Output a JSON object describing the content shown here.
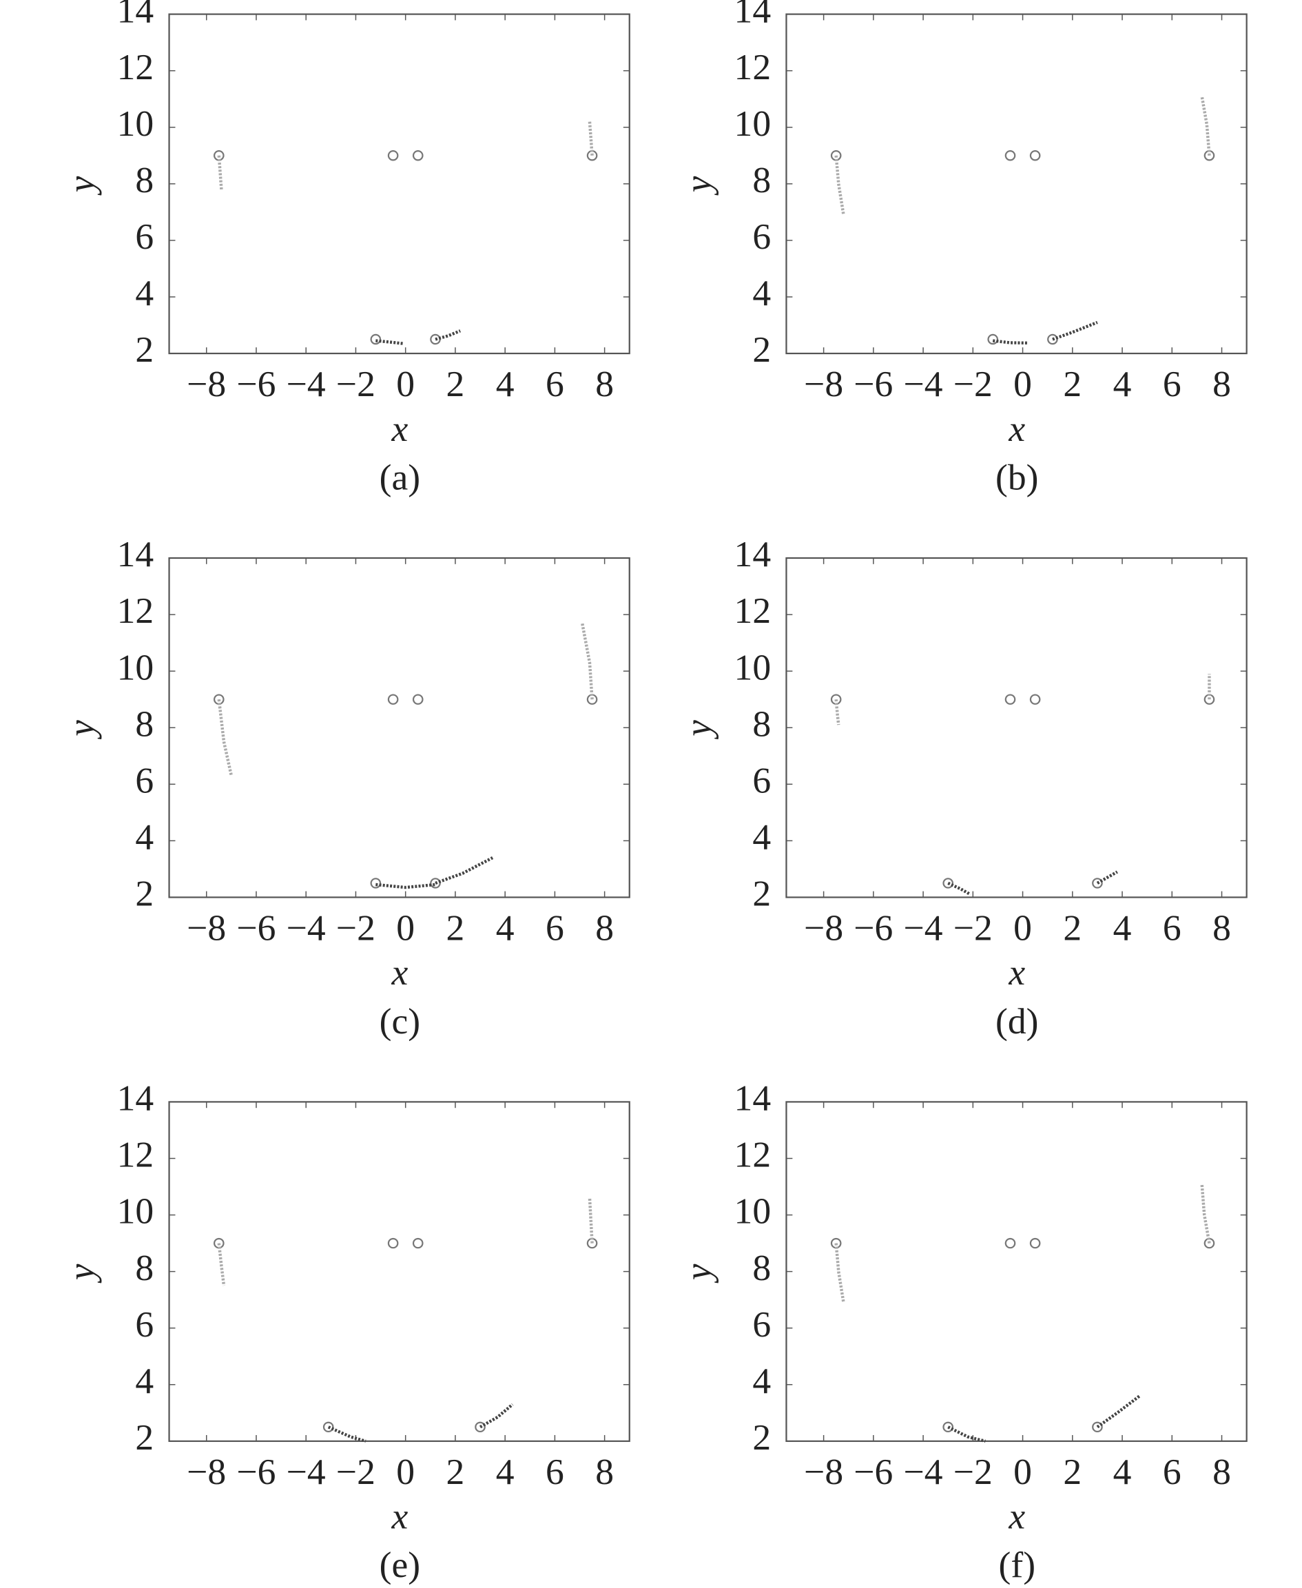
{
  "chart_data": [
    {
      "type": "scatter",
      "title": "(a)",
      "x_label": "x",
      "y_label": "y",
      "xlim": [
        -9.5,
        9
      ],
      "ylim": [
        2,
        14
      ],
      "xticks": [
        {
          "value": -8,
          "label": "−8"
        },
        {
          "value": -6,
          "label": "−6"
        },
        {
          "value": -4,
          "label": "−4"
        },
        {
          "value": -2,
          "label": "−2"
        },
        0,
        2,
        4,
        6,
        8
      ],
      "yticks": [
        2,
        4,
        6,
        8,
        10,
        12,
        14
      ],
      "series": [
        {
          "marker": "circle",
          "color": "#777777",
          "x": [
            -7.5,
            -0.5,
            0.5,
            7.5,
            -1.2,
            1.2
          ],
          "y": [
            9,
            9,
            9,
            9,
            2.5,
            2.5
          ]
        },
        {
          "marker": "dots",
          "color": "#aaaaaa",
          "x": [
            -7.5,
            -7.45,
            -7.4
          ],
          "y": [
            9,
            8.4,
            7.8
          ]
        },
        {
          "marker": "dots",
          "color": "#aaaaaa",
          "x": [
            7.5,
            7.45,
            7.4
          ],
          "y": [
            9,
            9.6,
            10.2
          ]
        },
        {
          "marker": "dots",
          "color": "#444444",
          "x": [
            -1.2,
            -0.6,
            -0.1
          ],
          "y": [
            2.45,
            2.4,
            2.35
          ]
        },
        {
          "marker": "dots",
          "color": "#444444",
          "x": [
            1.2,
            1.7,
            2.2
          ],
          "y": [
            2.5,
            2.62,
            2.8
          ]
        }
      ]
    },
    {
      "type": "scatter",
      "title": "(b)",
      "x_label": "x",
      "y_label": "y",
      "xlim": [
        -9.5,
        9
      ],
      "ylim": [
        2,
        14
      ],
      "xticks": [
        {
          "value": -8,
          "label": "−8"
        },
        {
          "value": -6,
          "label": "−6"
        },
        {
          "value": -4,
          "label": "−4"
        },
        {
          "value": -2,
          "label": "−2"
        },
        0,
        2,
        4,
        6,
        8
      ],
      "yticks": [
        2,
        4,
        6,
        8,
        10,
        12,
        14
      ],
      "series": [
        {
          "marker": "circle",
          "color": "#777777",
          "x": [
            -7.5,
            -0.5,
            0.5,
            7.5,
            -1.2,
            1.2
          ],
          "y": [
            9,
            9,
            9,
            9,
            2.5,
            2.5
          ]
        },
        {
          "marker": "dots",
          "color": "#aaaaaa",
          "x": [
            -7.5,
            -7.4,
            -7.2
          ],
          "y": [
            9,
            8,
            6.9
          ]
        },
        {
          "marker": "dots",
          "color": "#aaaaaa",
          "x": [
            7.5,
            7.4,
            7.2
          ],
          "y": [
            9,
            10.1,
            11.1
          ]
        },
        {
          "marker": "dots",
          "color": "#444444",
          "x": [
            -1.2,
            -0.5,
            0.2
          ],
          "y": [
            2.45,
            2.38,
            2.37
          ]
        },
        {
          "marker": "dots",
          "color": "#444444",
          "x": [
            1.2,
            2,
            3
          ],
          "y": [
            2.5,
            2.75,
            3.1
          ]
        }
      ]
    },
    {
      "type": "scatter",
      "title": "(c)",
      "x_label": "x",
      "y_label": "y",
      "xlim": [
        -9.5,
        9
      ],
      "ylim": [
        2,
        14
      ],
      "xticks": [
        {
          "value": -8,
          "label": "−8"
        },
        {
          "value": -6,
          "label": "−6"
        },
        {
          "value": -4,
          "label": "−4"
        },
        {
          "value": -2,
          "label": "−2"
        },
        0,
        2,
        4,
        6,
        8
      ],
      "yticks": [
        2,
        4,
        6,
        8,
        10,
        12,
        14
      ],
      "series": [
        {
          "marker": "circle",
          "color": "#777777",
          "x": [
            -7.5,
            -0.5,
            0.5,
            7.5,
            -1.2,
            1.2
          ],
          "y": [
            9,
            9,
            9,
            9,
            2.5,
            2.5
          ]
        },
        {
          "marker": "dots",
          "color": "#aaaaaa",
          "x": [
            -7.5,
            -7.3,
            -7
          ],
          "y": [
            9,
            7.5,
            6.3
          ]
        },
        {
          "marker": "dots",
          "color": "#aaaaaa",
          "x": [
            7.5,
            7.4,
            7.1
          ],
          "y": [
            9,
            10.3,
            11.7
          ]
        },
        {
          "marker": "dots",
          "color": "#444444",
          "x": [
            -1.2,
            0,
            1.2
          ],
          "y": [
            2.45,
            2.35,
            2.45
          ]
        },
        {
          "marker": "dots",
          "color": "#444444",
          "x": [
            1.2,
            2.3,
            3.5
          ],
          "y": [
            2.5,
            2.85,
            3.4
          ]
        }
      ]
    },
    {
      "type": "scatter",
      "title": "(d)",
      "x_label": "x",
      "y_label": "y",
      "xlim": [
        -9.5,
        9
      ],
      "ylim": [
        2,
        14
      ],
      "xticks": [
        {
          "value": -8,
          "label": "−8"
        },
        {
          "value": -6,
          "label": "−6"
        },
        {
          "value": -4,
          "label": "−4"
        },
        {
          "value": -2,
          "label": "−2"
        },
        0,
        2,
        4,
        6,
        8
      ],
      "yticks": [
        2,
        4,
        6,
        8,
        10,
        12,
        14
      ],
      "series": [
        {
          "marker": "circle",
          "color": "#777777",
          "x": [
            -7.5,
            -0.5,
            0.5,
            7.5,
            -3,
            3
          ],
          "y": [
            9,
            9,
            9,
            9,
            2.5,
            2.5
          ]
        },
        {
          "marker": "dots",
          "color": "#aaaaaa",
          "x": [
            -7.5,
            -7.45,
            -7.4
          ],
          "y": [
            9,
            8.5,
            8.1
          ]
        },
        {
          "marker": "dots",
          "color": "#aaaaaa",
          "x": [
            7.5,
            7.5,
            7.5
          ],
          "y": [
            9,
            9.5,
            9.9
          ]
        },
        {
          "marker": "dots",
          "color": "#444444",
          "x": [
            -3,
            -2.5,
            -2.1
          ],
          "y": [
            2.5,
            2.3,
            2.1
          ]
        },
        {
          "marker": "dots",
          "color": "#444444",
          "x": [
            3,
            3.4,
            3.8
          ],
          "y": [
            2.5,
            2.7,
            2.9
          ]
        }
      ]
    },
    {
      "type": "scatter",
      "title": "(e)",
      "x_label": "x",
      "y_label": "y",
      "xlim": [
        -9.5,
        9
      ],
      "ylim": [
        2,
        14
      ],
      "xticks": [
        {
          "value": -8,
          "label": "−8"
        },
        {
          "value": -6,
          "label": "−6"
        },
        {
          "value": -4,
          "label": "−4"
        },
        {
          "value": -2,
          "label": "−2"
        },
        0,
        2,
        4,
        6,
        8
      ],
      "yticks": [
        2,
        4,
        6,
        8,
        10,
        12,
        14
      ],
      "series": [
        {
          "marker": "circle",
          "color": "#777777",
          "x": [
            -7.5,
            -0.5,
            0.5,
            7.5,
            -3.1,
            3
          ],
          "y": [
            9,
            9,
            9,
            9,
            2.5,
            2.5
          ]
        },
        {
          "marker": "dots",
          "color": "#aaaaaa",
          "x": [
            -7.5,
            -7.4,
            -7.3
          ],
          "y": [
            9,
            8.2,
            7.5
          ]
        },
        {
          "marker": "dots",
          "color": "#aaaaaa",
          "x": [
            7.5,
            7.45,
            7.4
          ],
          "y": [
            9,
            9.8,
            10.6
          ]
        },
        {
          "marker": "dots",
          "color": "#444444",
          "x": [
            -3.1,
            -2.2,
            -1.6
          ],
          "y": [
            2.5,
            2.15,
            2
          ]
        },
        {
          "marker": "dots",
          "color": "#444444",
          "x": [
            3,
            3.7,
            4.3
          ],
          "y": [
            2.5,
            2.85,
            3.3
          ]
        }
      ]
    },
    {
      "type": "scatter",
      "title": "(f)",
      "x_label": "x",
      "y_label": "y",
      "xlim": [
        -9.5,
        9
      ],
      "ylim": [
        2,
        14
      ],
      "xticks": [
        {
          "value": -8,
          "label": "−8"
        },
        {
          "value": -6,
          "label": "−6"
        },
        {
          "value": -4,
          "label": "−4"
        },
        {
          "value": -2,
          "label": "−2"
        },
        0,
        2,
        4,
        6,
        8
      ],
      "yticks": [
        2,
        4,
        6,
        8,
        10,
        12,
        14
      ],
      "series": [
        {
          "marker": "circle",
          "color": "#777777",
          "x": [
            -7.5,
            -0.5,
            0.5,
            7.5,
            -3,
            3
          ],
          "y": [
            9,
            9,
            9,
            9,
            2.5,
            2.5
          ]
        },
        {
          "marker": "dots",
          "color": "#aaaaaa",
          "x": [
            -7.5,
            -7.4,
            -7.2
          ],
          "y": [
            9,
            8,
            6.9
          ]
        },
        {
          "marker": "dots",
          "color": "#aaaaaa",
          "x": [
            7.5,
            7.3,
            7.2
          ],
          "y": [
            9,
            10,
            11.1
          ]
        },
        {
          "marker": "dots",
          "color": "#444444",
          "x": [
            -3,
            -2.2,
            -1.5
          ],
          "y": [
            2.5,
            2.15,
            2
          ]
        },
        {
          "marker": "dots",
          "color": "#444444",
          "x": [
            3,
            3.8,
            4.7
          ],
          "y": [
            2.5,
            3,
            3.6
          ]
        }
      ]
    }
  ]
}
